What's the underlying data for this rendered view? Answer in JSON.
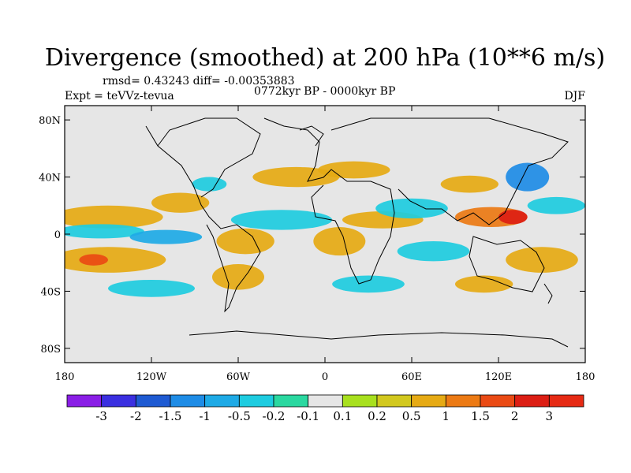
{
  "chart_data": {
    "type": "heatmap",
    "title": "Divergence (smoothed) at 200 hPa (10**6 m/s)",
    "stats": "rmsd= 0.43243 diff= -0.00353883",
    "experiment": "Expt = teVVz-tevua",
    "period": "0772kyr BP - 0000kyr BP",
    "season": "DJF",
    "x_ticks": [
      "180",
      "120W",
      "60W",
      "0",
      "60E",
      "120E",
      "180"
    ],
    "y_ticks": [
      "80N",
      "40N",
      "0",
      "40S",
      "80S"
    ],
    "xlim": [
      -180,
      180
    ],
    "ylim": [
      -90,
      90
    ],
    "colorbar": {
      "levels": [
        "-3",
        "-2",
        "-1.5",
        "-1",
        "-0.5",
        "-0.2",
        "-0.1",
        "0.1",
        "0.2",
        "0.5",
        "1",
        "1.5",
        "2",
        "3"
      ],
      "colors": [
        "#8a1ee6",
        "#3a2fe0",
        "#1e5ad2",
        "#1e8ce6",
        "#1eaae6",
        "#1ecce0",
        "#2ad8a0",
        "#e6e6e6",
        "#a8e01e",
        "#d2c81e",
        "#e6aa14",
        "#ec7a14",
        "#ea4a14",
        "#dc1e14",
        "#e62a14"
      ]
    },
    "fields": [
      {
        "lon": -150,
        "lat": 12,
        "rx": 38,
        "ry": 8,
        "value": 0.7
      },
      {
        "lon": -150,
        "lat": -18,
        "rx": 40,
        "ry": 9,
        "value": 0.8
      },
      {
        "lon": -160,
        "lat": -18,
        "rx": 10,
        "ry": 4,
        "value": 1.6
      },
      {
        "lon": -100,
        "lat": 22,
        "rx": 20,
        "ry": 7,
        "value": 0.7
      },
      {
        "lon": -80,
        "lat": 35,
        "rx": 12,
        "ry": 5,
        "value": -0.4
      },
      {
        "lon": -155,
        "lat": 2,
        "rx": 30,
        "ry": 5,
        "value": -0.4
      },
      {
        "lon": -110,
        "lat": -2,
        "rx": 25,
        "ry": 5,
        "value": -0.6
      },
      {
        "lon": -55,
        "lat": -5,
        "rx": 20,
        "ry": 9,
        "value": 0.8
      },
      {
        "lon": -30,
        "lat": 10,
        "rx": 35,
        "ry": 7,
        "value": -0.5
      },
      {
        "lon": -20,
        "lat": 40,
        "rx": 30,
        "ry": 7,
        "value": 0.5
      },
      {
        "lon": 10,
        "lat": -5,
        "rx": 18,
        "ry": 10,
        "value": 0.8
      },
      {
        "lon": 40,
        "lat": 10,
        "rx": 28,
        "ry": 6,
        "value": 0.6
      },
      {
        "lon": 20,
        "lat": 45,
        "rx": 25,
        "ry": 6,
        "value": 0.5
      },
      {
        "lon": 60,
        "lat": 18,
        "rx": 25,
        "ry": 7,
        "value": -0.5
      },
      {
        "lon": 75,
        "lat": -12,
        "rx": 25,
        "ry": 7,
        "value": -0.4
      },
      {
        "lon": 115,
        "lat": 12,
        "rx": 25,
        "ry": 7,
        "value": 1.2
      },
      {
        "lon": 130,
        "lat": 12,
        "rx": 10,
        "ry": 5,
        "value": 2.2
      },
      {
        "lon": 150,
        "lat": -18,
        "rx": 25,
        "ry": 9,
        "value": 0.7
      },
      {
        "lon": 140,
        "lat": 40,
        "rx": 15,
        "ry": 10,
        "value": -1.2
      },
      {
        "lon": 100,
        "lat": 35,
        "rx": 20,
        "ry": 6,
        "value": 0.6
      },
      {
        "lon": -60,
        "lat": -30,
        "rx": 18,
        "ry": 9,
        "value": 0.6
      },
      {
        "lon": 30,
        "lat": -35,
        "rx": 25,
        "ry": 6,
        "value": -0.4
      },
      {
        "lon": 110,
        "lat": -35,
        "rx": 20,
        "ry": 6,
        "value": 0.5
      },
      {
        "lon": -120,
        "lat": -38,
        "rx": 30,
        "ry": 6,
        "value": -0.5
      },
      {
        "lon": 160,
        "lat": 20,
        "rx": 20,
        "ry": 6,
        "value": -0.5
      }
    ]
  }
}
